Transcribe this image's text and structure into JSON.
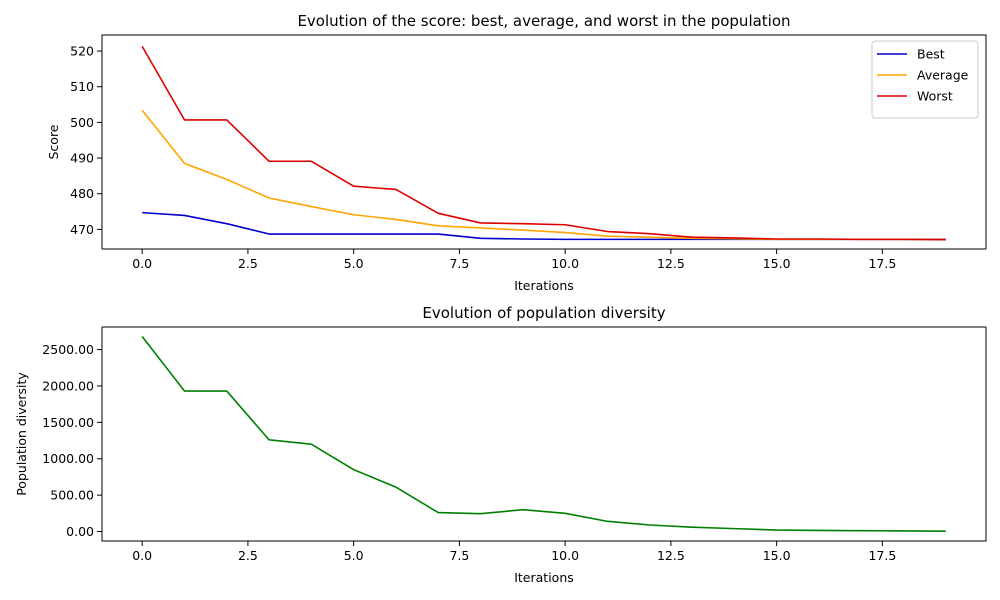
{
  "chart_data": [
    {
      "type": "line",
      "title": "Evolution of the score: best, average, and worst in the population",
      "xlabel": "Iterations",
      "ylabel": "Score",
      "xlim": [
        -0.95,
        19.95
      ],
      "ylim": [
        464.5,
        524.5
      ],
      "xticks": [
        0.0,
        2.5,
        5.0,
        7.5,
        10.0,
        12.5,
        15.0,
        17.5
      ],
      "xtick_labels": [
        "0.0",
        "2.5",
        "5.0",
        "7.5",
        "10.0",
        "12.5",
        "15.0",
        "17.5"
      ],
      "yticks": [
        470,
        480,
        490,
        500,
        510,
        520
      ],
      "ytick_labels": [
        "470",
        "480",
        "490",
        "500",
        "510",
        "520"
      ],
      "legend": "top-right",
      "grid": false,
      "x": [
        0,
        1,
        2,
        3,
        4,
        5,
        6,
        7,
        8,
        9,
        10,
        11,
        12,
        13,
        14,
        15,
        16,
        17,
        18,
        19
      ],
      "series": [
        {
          "name": "Best",
          "color": "#0000cc",
          "values": [
            474.7,
            473.9,
            471.6,
            468.7,
            468.7,
            468.7,
            468.7,
            468.7,
            467.5,
            467.3,
            467.2,
            467.2,
            467.2,
            467.2,
            467.2,
            467.2,
            467.2,
            467.2,
            467.2,
            467.2
          ]
        },
        {
          "name": "Average",
          "color": "#ffa500",
          "values": [
            503.4,
            488.5,
            484.0,
            478.8,
            476.4,
            474.1,
            472.8,
            471.0,
            470.4,
            469.8,
            469.1,
            468.1,
            467.8,
            467.5,
            467.4,
            467.2,
            467.2,
            467.2,
            467.2,
            467.1
          ]
        },
        {
          "name": "Worst",
          "color": "#dd0000",
          "values": [
            521.3,
            500.7,
            500.7,
            489.1,
            489.1,
            482.1,
            481.2,
            474.5,
            471.8,
            471.6,
            471.3,
            469.4,
            468.8,
            467.8,
            467.6,
            467.3,
            467.3,
            467.2,
            467.2,
            467.1
          ]
        }
      ]
    },
    {
      "type": "line",
      "title": "Evolution of population diversity",
      "xlabel": "Iterations",
      "ylabel": "Population diversity",
      "xlim": [
        -0.95,
        19.95
      ],
      "ylim": [
        -130,
        2810
      ],
      "xticks": [
        0.0,
        2.5,
        5.0,
        7.5,
        10.0,
        12.5,
        15.0,
        17.5
      ],
      "xtick_labels": [
        "0.0",
        "2.5",
        "5.0",
        "7.5",
        "10.0",
        "12.5",
        "15.0",
        "17.5"
      ],
      "yticks": [
        0,
        500,
        1000,
        1500,
        2000,
        2500
      ],
      "ytick_labels": [
        "0.00",
        "500.00",
        "1000.00",
        "1500.00",
        "2000.00",
        "2500.00"
      ],
      "grid": false,
      "x": [
        0,
        1,
        2,
        3,
        4,
        5,
        6,
        7,
        8,
        9,
        10,
        11,
        12,
        13,
        14,
        15,
        16,
        17,
        18,
        19
      ],
      "series": [
        {
          "color": "#008000",
          "values": [
            2680,
            1930,
            1930,
            1260,
            1200,
            850,
            610,
            260,
            245,
            300,
            250,
            140,
            90,
            60,
            40,
            20,
            15,
            12,
            8,
            5
          ]
        }
      ]
    }
  ]
}
